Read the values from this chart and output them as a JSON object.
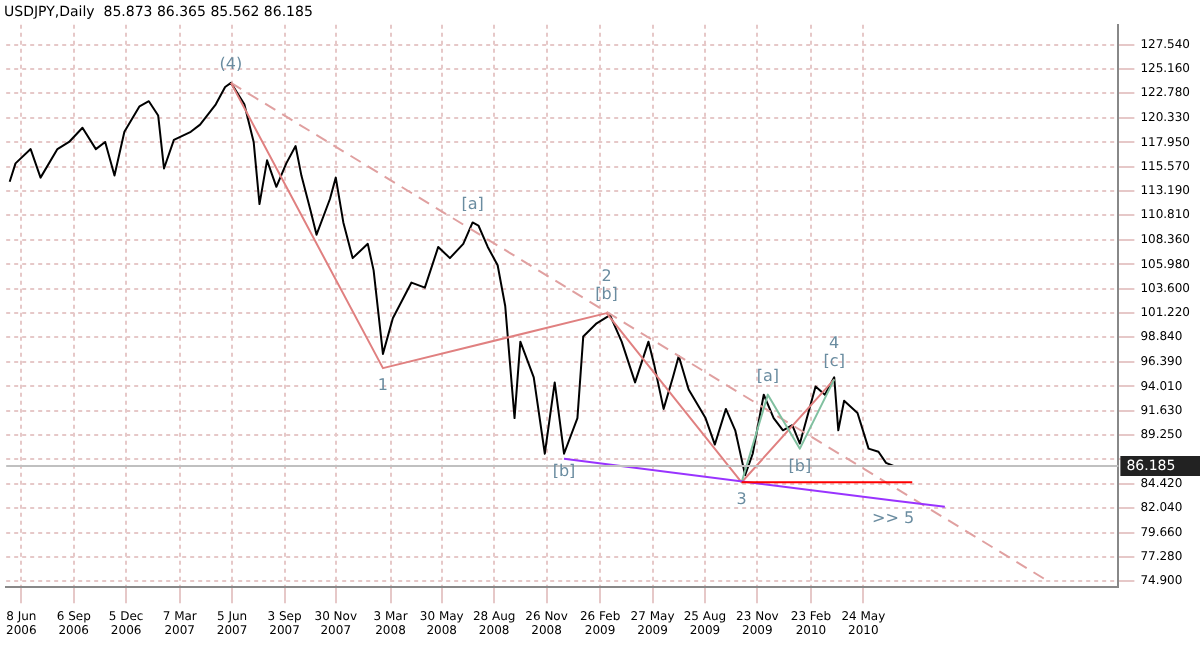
{
  "chart_data": {
    "type": "line",
    "title": "USDJPY,Daily  85.873 86.365 85.562 86.185",
    "grid": true,
    "marker": "none",
    "xlim": [
      "2006-05-13",
      "2011-08-05"
    ],
    "xticks": [
      {
        "value": "2006-06-08",
        "label": "8 Jun 2006"
      },
      {
        "value": "2006-09-06",
        "label": "6 Sep 2006"
      },
      {
        "value": "2006-12-05",
        "label": "5 Dec 2006"
      },
      {
        "value": "2007-03-07",
        "label": "7 Mar 2007"
      },
      {
        "value": "2007-06-05",
        "label": "5 Jun 2007"
      },
      {
        "value": "2007-09-03",
        "label": "3 Sep 2007"
      },
      {
        "value": "2007-11-30",
        "label": "30 Nov 2007"
      },
      {
        "value": "2008-03-03",
        "label": "3 Mar 2008"
      },
      {
        "value": "2008-05-30",
        "label": "30 May 2008"
      },
      {
        "value": "2008-08-28",
        "label": "28 Aug 2008"
      },
      {
        "value": "2008-11-26",
        "label": "26 Nov 2008"
      },
      {
        "value": "2009-02-26",
        "label": "26 Feb 2009"
      },
      {
        "value": "2009-05-27",
        "label": "27 May 2009"
      },
      {
        "value": "2009-08-25",
        "label": "25 Aug 2009"
      },
      {
        "value": "2009-11-23",
        "label": "23 Nov 2009"
      },
      {
        "value": "2010-02-23",
        "label": "23 Feb 2010"
      },
      {
        "value": "2010-05-24",
        "label": "24 May 2010"
      }
    ],
    "ylim": [
      74.3,
      129.5
    ],
    "yticks": [
      {
        "value": 74.9,
        "label": "74.900"
      },
      {
        "value": 77.28,
        "label": "77.280"
      },
      {
        "value": 79.66,
        "label": "79.660"
      },
      {
        "value": 82.04,
        "label": "82.040"
      },
      {
        "value": 84.42,
        "label": "84.420"
      },
      {
        "value": 86.87,
        "label": null
      },
      {
        "value": 89.25,
        "label": "89.250"
      },
      {
        "value": 91.63,
        "label": "91.630"
      },
      {
        "value": 94.01,
        "label": "94.010"
      },
      {
        "value": 96.39,
        "label": "96.390"
      },
      {
        "value": 98.84,
        "label": "98.840"
      },
      {
        "value": 101.22,
        "label": "101.220"
      },
      {
        "value": 103.6,
        "label": "103.600"
      },
      {
        "value": 105.98,
        "label": "105.980"
      },
      {
        "value": 108.36,
        "label": "108.360"
      },
      {
        "value": 110.81,
        "label": "110.810"
      },
      {
        "value": 113.19,
        "label": "113.190"
      },
      {
        "value": 115.57,
        "label": "115.570"
      },
      {
        "value": 117.95,
        "label": "117.950"
      },
      {
        "value": 120.33,
        "label": "120.330"
      },
      {
        "value": 122.78,
        "label": "122.780"
      },
      {
        "value": 125.16,
        "label": "125.160"
      },
      {
        "value": 127.54,
        "label": "127.540"
      }
    ],
    "series": [
      {
        "color": "#000000",
        "x": [
          "2006-05-19",
          "2006-05-29",
          "2006-06-24",
          "2006-07-11",
          "2006-08-09",
          "2006-08-29",
          "2006-09-21",
          "2006-10-14",
          "2006-10-30",
          "2006-11-15",
          "2006-12-02",
          "2006-12-28",
          "2007-01-13",
          "2007-01-29",
          "2007-02-08",
          "2007-02-25",
          "2007-03-26",
          "2007-04-11",
          "2007-05-08",
          "2007-05-24",
          "2007-06-03",
          "2007-06-26",
          "2007-07-12",
          "2007-07-22",
          "2007-08-04",
          "2007-08-20",
          "2007-09-06",
          "2007-09-22",
          "2007-10-02",
          "2007-10-18",
          "2007-10-28",
          "2007-11-20",
          "2007-11-30",
          "2007-12-13",
          "2007-12-29",
          "2008-01-24",
          "2008-02-03",
          "2008-02-19",
          "2008-03-07",
          "2008-04-08",
          "2008-05-01",
          "2008-05-24",
          "2008-06-13",
          "2008-07-06",
          "2008-07-22",
          "2008-08-01",
          "2008-08-17",
          "2008-09-03",
          "2008-09-16",
          "2008-10-02",
          "2008-10-12",
          "2008-11-04",
          "2008-11-23",
          "2008-12-10",
          "2008-12-26",
          "2009-01-18",
          "2009-01-28",
          "2009-02-20",
          "2009-03-15",
          "2009-04-04",
          "2009-04-27",
          "2009-05-20",
          "2009-05-30",
          "2009-06-15",
          "2009-07-01",
          "2009-07-11",
          "2009-07-28",
          "2009-08-26",
          "2009-09-11",
          "2009-09-30",
          "2009-10-16",
          "2009-11-02",
          "2009-11-15",
          "2009-12-04",
          "2009-12-21",
          "2010-01-06",
          "2010-01-22",
          "2010-02-04",
          "2010-03-03",
          "2010-03-19",
          "2010-04-04",
          "2010-04-11",
          "2010-04-21",
          "2010-05-14",
          "2010-06-02",
          "2010-06-19",
          "2010-07-02",
          "2010-07-15"
        ],
        "values": [
          114.1,
          115.9,
          117.3,
          114.5,
          117.3,
          118.0,
          119.4,
          117.3,
          118.0,
          114.7,
          119.0,
          121.5,
          122.0,
          120.6,
          115.4,
          118.2,
          119.0,
          119.7,
          121.7,
          123.4,
          123.8,
          121.7,
          118.0,
          111.9,
          116.2,
          113.6,
          115.9,
          117.6,
          114.7,
          111.2,
          108.9,
          112.4,
          114.5,
          110.1,
          106.6,
          108.0,
          105.4,
          97.2,
          100.7,
          104.2,
          103.7,
          107.7,
          106.6,
          108.0,
          110.1,
          109.8,
          107.7,
          105.9,
          101.9,
          90.9,
          98.4,
          94.9,
          87.4,
          94.4,
          87.4,
          90.9,
          98.9,
          100.2,
          101.0,
          98.4,
          94.4,
          98.4,
          96.1,
          91.8,
          94.9,
          97.0,
          93.7,
          90.9,
          88.3,
          91.8,
          89.7,
          85.3,
          87.4,
          93.2,
          90.9,
          89.7,
          90.2,
          88.4,
          94.0,
          93.2,
          94.9,
          89.7,
          92.6,
          91.4,
          87.9,
          87.6,
          86.5,
          86.2
        ]
      },
      {
        "color": "#e0a0a0",
        "line_style": "dashed",
        "x": [
          "2007-06-03",
          "2011-04-09"
        ],
        "values": [
          123.8,
          74.8
        ]
      },
      {
        "color": "#e08080",
        "x": [
          "2007-06-03",
          "2008-02-19",
          "2009-03-09",
          "2009-10-27",
          "2010-04-04"
        ],
        "values": [
          123.8,
          95.8,
          101.2,
          84.6,
          94.7
        ]
      },
      {
        "color": "#80c0a0",
        "x": [
          "2009-10-27",
          "2009-12-11",
          "2010-02-04",
          "2010-04-04"
        ],
        "values": [
          84.6,
          93.2,
          87.9,
          94.7
        ]
      },
      {
        "color": "#9933ff",
        "x": [
          "2008-12-26",
          "2010-07-14",
          "2010-10-11"
        ],
        "values": [
          86.9,
          82.8,
          82.2
        ]
      },
      {
        "color": "#ff0000",
        "x": [
          "2009-10-27",
          "2010-08-16"
        ],
        "values": [
          84.6,
          84.6
        ]
      }
    ],
    "ref_lines": [
      {
        "axis": "y",
        "value": 86.185,
        "label": "86.185",
        "color": "#c0c0c0"
      }
    ],
    "annotations": [
      {
        "text": "(4)",
        "x": "2007-06-03",
        "y": 123.8
      },
      {
        "text": "[a]",
        "x": "2008-07-22",
        "y": 110.1
      },
      {
        "text": "1",
        "x": "2008-02-19",
        "y": 95.8
      },
      {
        "text": "2",
        "x": "2009-03-09",
        "y": 101.2
      },
      {
        "text": "[b]",
        "x": "2009-03-09",
        "y": 101.2
      },
      {
        "text": "[b]",
        "x": "2008-12-26",
        "y": 87.4
      },
      {
        "text": "[a]",
        "x": "2009-12-11",
        "y": 93.2
      },
      {
        "text": "4",
        "x": "2010-04-04",
        "y": 94.7
      },
      {
        "text": "[c]",
        "x": "2010-04-04",
        "y": 94.7
      },
      {
        "text": "[b]",
        "x": "2010-02-04",
        "y": 87.9
      },
      {
        "text": "3",
        "x": "2009-10-27",
        "y": 84.6
      },
      {
        "text": ">> 5",
        "x": "2010-07-14",
        "y": 82.8
      }
    ]
  }
}
